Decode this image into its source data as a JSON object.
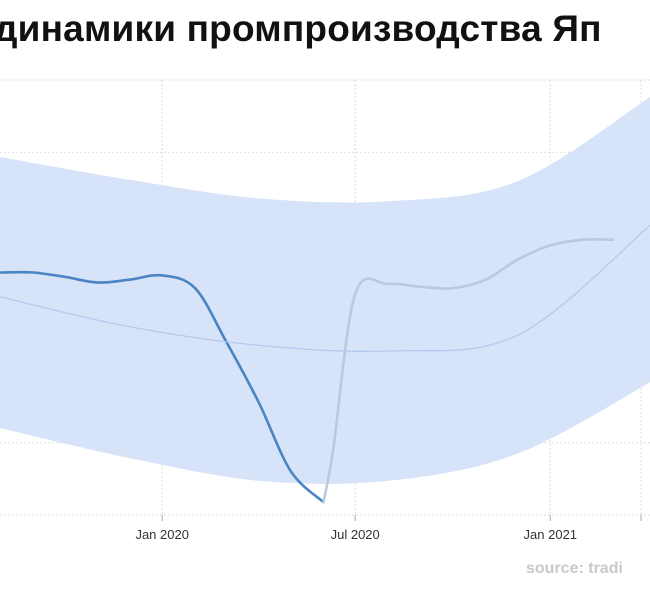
{
  "title": "динамики промпроизводства Яп",
  "source": "source: tradi",
  "chart_data": {
    "type": "line",
    "title": "динамики промпроизводства Яп",
    "xlabel": "",
    "ylabel": "",
    "grid": true,
    "x_ticks": [
      {
        "date": "2020-01-01",
        "label": "Jan 2020"
      },
      {
        "date": "2020-07-01",
        "label": "Jul 2020"
      },
      {
        "date": "2021-01-01",
        "label": "Jan 2021"
      }
    ],
    "x_range": [
      "2019-08-01",
      "2021-04-05"
    ],
    "y_range": [
      75.5,
      106
    ],
    "series": [
      {
        "role": "actual",
        "color": "#4a84c4",
        "points": [
          [
            "2019-08-01",
            92.5
          ],
          [
            "2019-09-01",
            92.5
          ],
          [
            "2019-10-01",
            92.2
          ],
          [
            "2019-11-01",
            91.8
          ],
          [
            "2019-12-01",
            92.0
          ],
          [
            "2020-01-01",
            92.3
          ],
          [
            "2020-02-01",
            91.4
          ],
          [
            "2020-03-01",
            87.7
          ],
          [
            "2020-04-01",
            83.4
          ],
          [
            "2020-05-01",
            78.6
          ],
          [
            "2020-06-01",
            76.4
          ]
        ]
      },
      {
        "role": "forecast",
        "color": "#b9c9de",
        "points": [
          [
            "2020-06-01",
            76.4
          ],
          [
            "2020-06-10",
            80.0
          ],
          [
            "2020-07-01",
            91.0
          ],
          [
            "2020-08-01",
            91.7
          ],
          [
            "2020-09-01",
            91.5
          ],
          [
            "2020-10-01",
            91.4
          ],
          [
            "2020-11-01",
            92.0
          ],
          [
            "2020-12-01",
            93.4
          ],
          [
            "2021-01-01",
            94.4
          ],
          [
            "2021-02-01",
            94.8
          ],
          [
            "2021-03-01",
            94.8
          ]
        ]
      },
      {
        "role": "trend",
        "color": "#b3c8ee",
        "points": [
          [
            "2019-08-01",
            90.8
          ],
          [
            "2019-12-01",
            88.7
          ],
          [
            "2020-04-01",
            87.4
          ],
          [
            "2020-08-01",
            87.0
          ],
          [
            "2020-12-01",
            88.1
          ],
          [
            "2021-04-05",
            95.8
          ]
        ]
      }
    ],
    "band": {
      "color": "#d6e3f8",
      "upper": [
        [
          "2019-08-01",
          100.6
        ],
        [
          "2019-12-01",
          99.0
        ],
        [
          "2020-04-01",
          97.7
        ],
        [
          "2020-08-01",
          97.5
        ],
        [
          "2020-12-01",
          98.9
        ],
        [
          "2021-04-05",
          104.8
        ]
      ],
      "lower": [
        [
          "2019-08-01",
          81.6
        ],
        [
          "2019-12-01",
          79.5
        ],
        [
          "2020-04-01",
          77.9
        ],
        [
          "2020-08-01",
          77.9
        ],
        [
          "2020-12-01",
          79.8
        ],
        [
          "2021-04-05",
          84.8
        ]
      ]
    }
  }
}
